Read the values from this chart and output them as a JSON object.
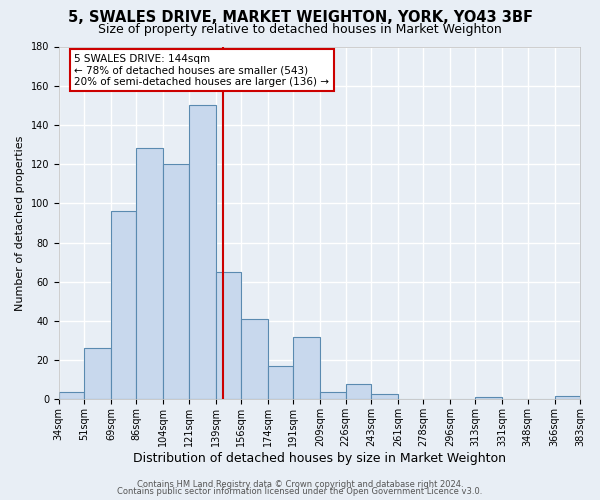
{
  "title": "5, SWALES DRIVE, MARKET WEIGHTON, YORK, YO43 3BF",
  "subtitle": "Size of property relative to detached houses in Market Weighton",
  "xlabel": "Distribution of detached houses by size in Market Weighton",
  "ylabel": "Number of detached properties",
  "bar_edges": [
    34,
    51,
    69,
    86,
    104,
    121,
    139,
    156,
    174,
    191,
    209,
    226,
    243,
    261,
    278,
    296,
    313,
    331,
    348,
    366,
    383
  ],
  "bar_heights": [
    4,
    26,
    96,
    128,
    120,
    150,
    65,
    41,
    17,
    32,
    4,
    8,
    3,
    0,
    0,
    0,
    1,
    0,
    0,
    2
  ],
  "bar_color": "#c8d8ed",
  "bar_edge_color": "#5a8ab0",
  "vline_x": 144,
  "vline_color": "#cc0000",
  "annotation_title": "5 SWALES DRIVE: 144sqm",
  "annotation_line1": "← 78% of detached houses are smaller (543)",
  "annotation_line2": "20% of semi-detached houses are larger (136) →",
  "annotation_box_color": "#ffffff",
  "annotation_box_edge": "#cc0000",
  "ylim": [
    0,
    180
  ],
  "tick_labels": [
    "34sqm",
    "51sqm",
    "69sqm",
    "86sqm",
    "104sqm",
    "121sqm",
    "139sqm",
    "156sqm",
    "174sqm",
    "191sqm",
    "209sqm",
    "226sqm",
    "243sqm",
    "261sqm",
    "278sqm",
    "296sqm",
    "313sqm",
    "331sqm",
    "348sqm",
    "366sqm",
    "383sqm"
  ],
  "footer1": "Contains HM Land Registry data © Crown copyright and database right 2024.",
  "footer2": "Contains public sector information licensed under the Open Government Licence v3.0.",
  "bg_color": "#e8eef5",
  "plot_bg_color": "#e8eef5",
  "grid_color": "#ffffff",
  "title_fontsize": 10.5,
  "subtitle_fontsize": 9,
  "xlabel_fontsize": 9,
  "ylabel_fontsize": 8,
  "tick_fontsize": 7,
  "footer_fontsize": 6,
  "yticks": [
    0,
    20,
    40,
    60,
    80,
    100,
    120,
    140,
    160,
    180
  ]
}
